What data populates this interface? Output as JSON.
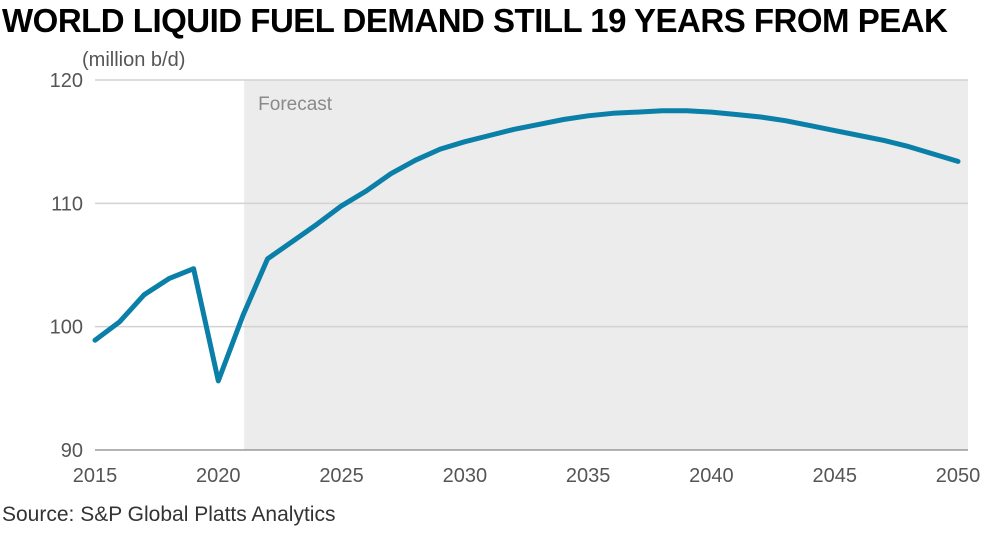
{
  "title": "WORLD LIQUID FUEL DEMAND STILL 19 YEARS FROM PEAK",
  "source": "Source: S&P Global Platts Analytics",
  "chart_data": {
    "type": "line",
    "title": "WORLD LIQUID FUEL DEMAND STILL 19 YEARS FROM PEAK",
    "unit_label": "(million b/d)",
    "xlabel": "",
    "ylabel": "",
    "xlim": [
      2015,
      2050
    ],
    "ylim": [
      90,
      120
    ],
    "x_ticks": [
      2015,
      2020,
      2025,
      2030,
      2035,
      2040,
      2045,
      2050
    ],
    "y_ticks": [
      90,
      100,
      110,
      120
    ],
    "grid": "horizontal",
    "forecast_region": {
      "label": "Forecast",
      "start": 2021.05,
      "end": 2050
    },
    "colors": {
      "line": "#0a7fa8",
      "forecast_bg": "#ececec",
      "grid": "#d2d2d2"
    },
    "series": [
      {
        "x": [
          2015,
          2016,
          2017,
          2018,
          2019,
          2020,
          2021,
          2022,
          2023,
          2024,
          2025,
          2026,
          2027,
          2028,
          2029,
          2030,
          2031,
          2032,
          2033,
          2034,
          2035,
          2036,
          2037,
          2038,
          2039,
          2040,
          2041,
          2042,
          2043,
          2044,
          2045,
          2046,
          2047,
          2048,
          2049,
          2050
        ],
        "values": [
          98.9,
          100.4,
          102.6,
          103.9,
          104.7,
          95.6,
          100.9,
          105.5,
          106.9,
          108.3,
          109.8,
          111.0,
          112.4,
          113.5,
          114.4,
          115.0,
          115.5,
          116.0,
          116.4,
          116.8,
          117.1,
          117.3,
          117.4,
          117.5,
          117.5,
          117.4,
          117.2,
          117.0,
          116.7,
          116.3,
          115.9,
          115.5,
          115.1,
          114.6,
          114.0,
          113.4
        ]
      }
    ]
  }
}
